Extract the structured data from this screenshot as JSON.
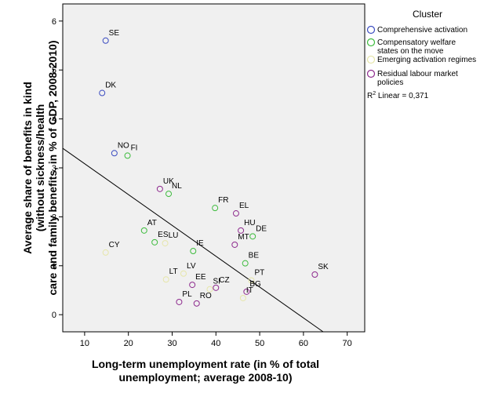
{
  "chart_data": {
    "type": "scatter",
    "title": "",
    "xlabel": "Long-term unemployment rate (in % of total unemployment; average 2008-10)",
    "ylabel": "Average share of benefits in kind (without sickness/health care and family benefits, in % of GDP, 2008-2010)",
    "xlim": [
      5,
      74
    ],
    "ylim": [
      -0.35,
      6.35
    ],
    "x_ticks": [
      10,
      20,
      30,
      40,
      50,
      60,
      70
    ],
    "y_ticks": [
      0,
      1,
      2,
      3,
      4,
      5,
      6
    ],
    "grid": false,
    "legend_title": "Cluster",
    "legend_position": "right",
    "fit_label": "R2 Linear = 0,371",
    "fit_line": {
      "x1": 5,
      "y1": 3.4,
      "x2": 64.5,
      "y2": -0.35
    },
    "series": [
      {
        "name": "Comprehensive activation",
        "color": "#3b4cc0",
        "points": [
          {
            "label": "SE",
            "x": 14.8,
            "y": 5.6
          },
          {
            "label": "DK",
            "x": 14.0,
            "y": 4.53
          },
          {
            "label": "NO",
            "x": 16.8,
            "y": 3.3
          }
        ]
      },
      {
        "name": "Compensatory welfare states on the move",
        "color": "#3dbb3d",
        "points": [
          {
            "label": "FI",
            "x": 19.8,
            "y": 3.25
          },
          {
            "label": "NL",
            "x": 29.2,
            "y": 2.47
          },
          {
            "label": "FR",
            "x": 39.8,
            "y": 2.18
          },
          {
            "label": "DE",
            "x": 48.4,
            "y": 1.6
          },
          {
            "label": "AT",
            "x": 23.6,
            "y": 1.72
          },
          {
            "label": "ES",
            "x": 26.0,
            "y": 1.48
          },
          {
            "label": "IE",
            "x": 34.8,
            "y": 1.3
          },
          {
            "label": "BE",
            "x": 46.7,
            "y": 1.05
          }
        ]
      },
      {
        "name": "Emerging activation regimes",
        "color": "#e6e6aa",
        "points": [
          {
            "label": "CY",
            "x": 14.8,
            "y": 1.27
          },
          {
            "label": "LU",
            "x": 28.4,
            "y": 1.46
          },
          {
            "label": "LV",
            "x": 32.6,
            "y": 0.84
          },
          {
            "label": "LT",
            "x": 28.6,
            "y": 0.72
          },
          {
            "label": "SI",
            "x": 38.6,
            "y": 0.52
          },
          {
            "label": "PT",
            "x": 48.1,
            "y": 0.7
          },
          {
            "label": "IT",
            "x": 46.2,
            "y": 0.34
          }
        ]
      },
      {
        "name": "Residual labour market policies",
        "color": "#8e2b8e",
        "points": [
          {
            "label": "UK",
            "x": 27.2,
            "y": 2.57
          },
          {
            "label": "EL",
            "x": 44.6,
            "y": 2.07
          },
          {
            "label": "HU",
            "x": 45.7,
            "y": 1.72
          },
          {
            "label": "MT",
            "x": 44.3,
            "y": 1.43
          },
          {
            "label": "SK",
            "x": 62.6,
            "y": 0.82
          },
          {
            "label": "EE",
            "x": 34.6,
            "y": 0.61
          },
          {
            "label": "CZ",
            "x": 40.0,
            "y": 0.55
          },
          {
            "label": "BG",
            "x": 47.0,
            "y": 0.47
          },
          {
            "label": "PL",
            "x": 31.6,
            "y": 0.26
          },
          {
            "label": "RO",
            "x": 35.6,
            "y": 0.23
          }
        ]
      }
    ]
  }
}
